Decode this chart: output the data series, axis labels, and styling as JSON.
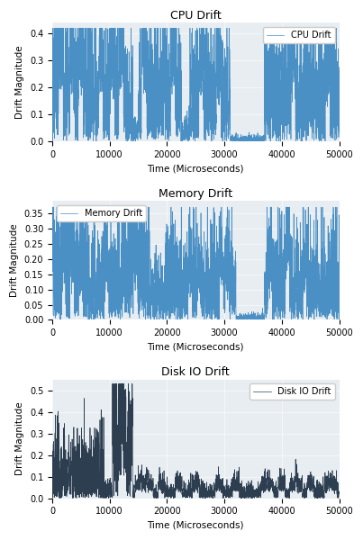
{
  "title_cpu": "CPU Drift",
  "title_mem": "Memory Drift",
  "title_disk": "Disk IO Drift",
  "xlabel": "Time (Microseconds)",
  "ylabel": "Drift Magnitude",
  "legend_cpu": "CPU Drift",
  "legend_mem": "Memory Drift",
  "legend_disk": "Disk IO Drift",
  "cpu_color": "#4a90c4",
  "mem_color": "#4a90c4",
  "disk_color": "#2c3e50",
  "bg_color": "#e8edf2",
  "xlim": [
    0,
    50000
  ],
  "cpu_ylim": [
    0,
    0.44
  ],
  "mem_ylim": [
    0,
    0.39
  ],
  "disk_ylim": [
    0,
    0.55
  ],
  "cpu_yticks": [
    0.0,
    0.1,
    0.2,
    0.3,
    0.4
  ],
  "mem_yticks": [
    0.0,
    0.05,
    0.1,
    0.15,
    0.2,
    0.25,
    0.3,
    0.35
  ],
  "disk_yticks": [
    0.0,
    0.1,
    0.2,
    0.3,
    0.4,
    0.5
  ],
  "n_points": 3000,
  "seed": 7,
  "figsize": [
    4.03,
    6.0
  ],
  "dpi": 100
}
